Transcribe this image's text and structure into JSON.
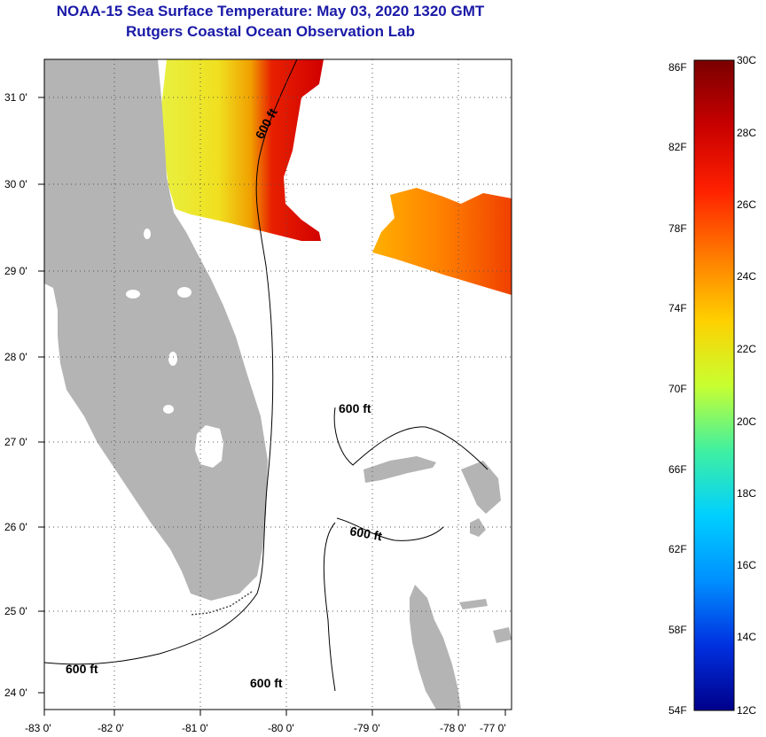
{
  "header": {
    "title_line1": "NOAA-15 Sea Surface Temperature:  May 03, 2020 1320 GMT",
    "title_line2": "Rutgers Coastal Ocean Observation Lab"
  },
  "map": {
    "lon_labels": [
      "-83 0'",
      "-82 0'",
      "-81 0'",
      "-80 0'",
      "-79 0'",
      "-78 0'",
      "-77 0'"
    ],
    "lat_labels": [
      "31 0'",
      "30 0'",
      "29 0'",
      "28 0'",
      "27 0'",
      "26 0'",
      "25 0'",
      "24 0'"
    ],
    "contour_labels": [
      "600 ft",
      "600 ft",
      "600 ft",
      "600 ft",
      "600 ft"
    ],
    "colors": {
      "land": "#b4b4b4",
      "ocean_no_data": "#ffffff",
      "contour": "#000000",
      "grid": "#555555"
    }
  },
  "colorbar": {
    "fahrenheit_labels": [
      "86F",
      "82F",
      "78F",
      "74F",
      "70F",
      "66F",
      "62F",
      "58F",
      "54F"
    ],
    "celsius_labels": [
      "30C",
      "28C",
      "26C",
      "24C",
      "22C",
      "20C",
      "18C",
      "16C",
      "14C",
      "12C"
    ],
    "range_c": [
      12,
      30
    ],
    "range_f": [
      54,
      86
    ]
  }
}
